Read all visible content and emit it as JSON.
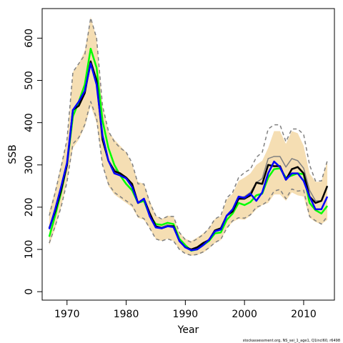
{
  "chart_data": {
    "type": "line",
    "xlabel": "Year",
    "ylabel": "SSB",
    "xlim": [
      1965.8,
      2015.2
    ],
    "ylim": [
      -20,
      670
    ],
    "x_ticks": [
      1970,
      1980,
      1990,
      2000,
      2010
    ],
    "y_ticks": [
      0,
      100,
      200,
      300,
      400,
      500,
      600
    ],
    "grid": false,
    "legend": "none",
    "footnote": "stockassessment.org, NS_sei_1_age1, Q1incl60, r6498",
    "x": [
      1967,
      1968,
      1969,
      1970,
      1971,
      1972,
      1973,
      1974,
      1975,
      1976,
      1977,
      1978,
      1979,
      1980,
      1981,
      1982,
      1983,
      1984,
      1985,
      1986,
      1987,
      1988,
      1989,
      1990,
      1991,
      1992,
      1993,
      1994,
      1995,
      1996,
      1997,
      1998,
      1999,
      2000,
      2001,
      2002,
      2003,
      2004,
      2005,
      2006,
      2007,
      2008,
      2009,
      2010,
      2011,
      2012,
      2013,
      2014
    ],
    "band": {
      "color": "#f5deb3",
      "lower": [
        110,
        150,
        200,
        260,
        340,
        360,
        390,
        440,
        400,
        300,
        250,
        230,
        220,
        210,
        200,
        175,
        170,
        150,
        125,
        120,
        125,
        120,
        100,
        90,
        85,
        87,
        92,
        102,
        115,
        122,
        150,
        165,
        172,
        170,
        180,
        195,
        205,
        210,
        230,
        230,
        215,
        235,
        228,
        225,
        175,
        165,
        160,
        170
      ],
      "upper": [
        190,
        240,
        300,
        360,
        520,
        540,
        570,
        650,
        600,
        440,
        380,
        360,
        345,
        330,
        300,
        260,
        255,
        215,
        180,
        172,
        180,
        178,
        140,
        125,
        120,
        128,
        138,
        150,
        172,
        178,
        218,
        232,
        262,
        270,
        280,
        300,
        310,
        340,
        380,
        380,
        350,
        380,
        375,
        345,
        280,
        260,
        260,
        310
      ]
    },
    "series": [
      {
        "color": "#000000",
        "values": [
          150,
          190,
          240,
          300,
          430,
          440,
          470,
          545,
          500,
          360,
          310,
          285,
          280,
          270,
          255,
          210,
          220,
          185,
          155,
          150,
          155,
          155,
          120,
          105,
          100,
          105,
          115,
          122,
          145,
          150,
          180,
          190,
          220,
          220,
          228,
          258,
          255,
          300,
          297,
          297,
          265,
          290,
          295,
          280,
          225,
          210,
          215,
          250
        ]
      },
      {
        "color": "#00ff00",
        "values": [
          130,
          180,
          235,
          300,
          415,
          450,
          490,
          575,
          530,
          405,
          340,
          300,
          275,
          255,
          240,
          210,
          215,
          180,
          160,
          158,
          163,
          160,
          125,
          110,
          97,
          100,
          110,
          120,
          138,
          140,
          170,
          185,
          210,
          205,
          212,
          228,
          232,
          270,
          290,
          292,
          270,
          275,
          280,
          278,
          210,
          193,
          185,
          203
        ]
      },
      {
        "color": "#0000ff",
        "values": [
          148,
          195,
          248,
          305,
          430,
          450,
          475,
          540,
          490,
          370,
          310,
          280,
          275,
          268,
          248,
          210,
          220,
          178,
          152,
          150,
          155,
          153,
          120,
          105,
          98,
          100,
          110,
          123,
          143,
          147,
          180,
          195,
          225,
          222,
          232,
          215,
          235,
          280,
          308,
          295,
          265,
          280,
          280,
          262,
          225,
          195,
          195,
          225
        ]
      },
      {
        "color": "#808080",
        "dashes": "none",
        "values": [
          150,
          190,
          245,
          305,
          430,
          445,
          470,
          545,
          500,
          365,
          310,
          290,
          280,
          268,
          250,
          210,
          218,
          182,
          155,
          153,
          158,
          155,
          122,
          107,
          100,
          103,
          113,
          124,
          145,
          150,
          180,
          190,
          222,
          225,
          235,
          258,
          268,
          315,
          320,
          320,
          295,
          315,
          310,
          292,
          240,
          215,
          215,
          250
        ]
      },
      {
        "color": "#808080",
        "dashes": "dashed",
        "values": [
          180,
          235,
          295,
          360,
          520,
          540,
          560,
          648,
          600,
          440,
          380,
          355,
          340,
          330,
          305,
          255,
          255,
          210,
          180,
          172,
          178,
          178,
          140,
          123,
          117,
          125,
          135,
          150,
          172,
          180,
          222,
          235,
          270,
          282,
          290,
          318,
          330,
          385,
          395,
          395,
          355,
          385,
          385,
          372,
          300,
          262,
          262,
          310
        ]
      },
      {
        "color": "#808080",
        "dashes": "dashed",
        "values": [
          115,
          155,
          200,
          260,
          350,
          365,
          395,
          450,
          410,
          300,
          255,
          235,
          225,
          215,
          205,
          178,
          173,
          150,
          125,
          120,
          125,
          120,
          100,
          90,
          86,
          88,
          94,
          104,
          116,
          124,
          150,
          168,
          175,
          174,
          182,
          200,
          205,
          215,
          238,
          242,
          220,
          243,
          238,
          240,
          178,
          168,
          160,
          178
        ]
      }
    ]
  }
}
